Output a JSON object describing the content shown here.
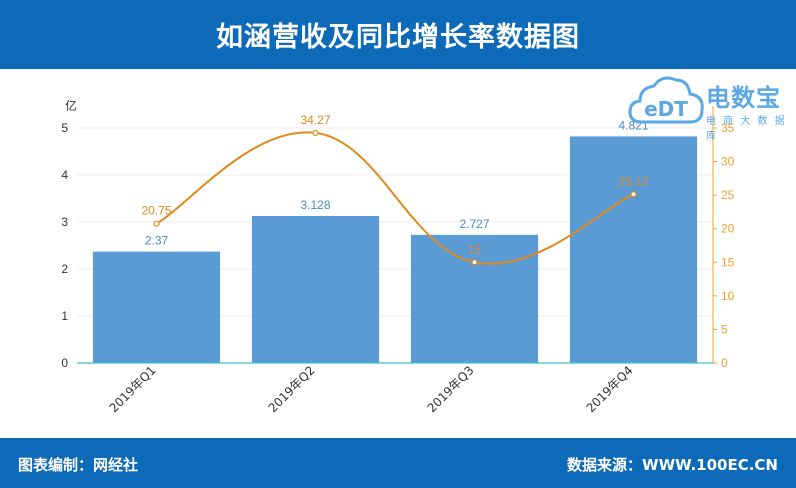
{
  "header": {
    "title": "如涵营收及同比增长率数据图"
  },
  "footer": {
    "credit": "图表编制：网经社",
    "source": "数据来源：WWW.100EC.CN"
  },
  "logo": {
    "badge_text": "eDT",
    "name": "电数宝",
    "tagline": "电 商 大 数 据 库"
  },
  "chart_data": {
    "type": "bar",
    "categories": [
      "2019年Q1",
      "2019年Q2",
      "2019年Q3",
      "2019年Q4"
    ],
    "ylabel": "亿",
    "ylim": [
      0,
      5
    ],
    "yticks": [
      0,
      1,
      2,
      3,
      4,
      5
    ],
    "y2lim": [
      0,
      35
    ],
    "y2ticks": [
      0,
      5,
      10,
      15,
      20,
      25,
      30,
      35
    ],
    "series": [
      {
        "type": "bar",
        "axis": "left",
        "values": [
          2.37,
          3.128,
          2.727,
          4.821
        ],
        "labels": [
          "2.37",
          "3.128",
          "2.727",
          "4.821"
        ],
        "color": "#5b9bd5",
        "label_color": "#4a8cc7"
      },
      {
        "type": "line",
        "axis": "right",
        "values": [
          20.75,
          34.27,
          15,
          25.12
        ],
        "labels": [
          "20.75",
          "34.27",
          "15",
          "25.12"
        ],
        "color": "#e08a1e"
      }
    ],
    "grid": true,
    "axis_color": "#f0a030",
    "baseline_color": "#40c0d0"
  }
}
